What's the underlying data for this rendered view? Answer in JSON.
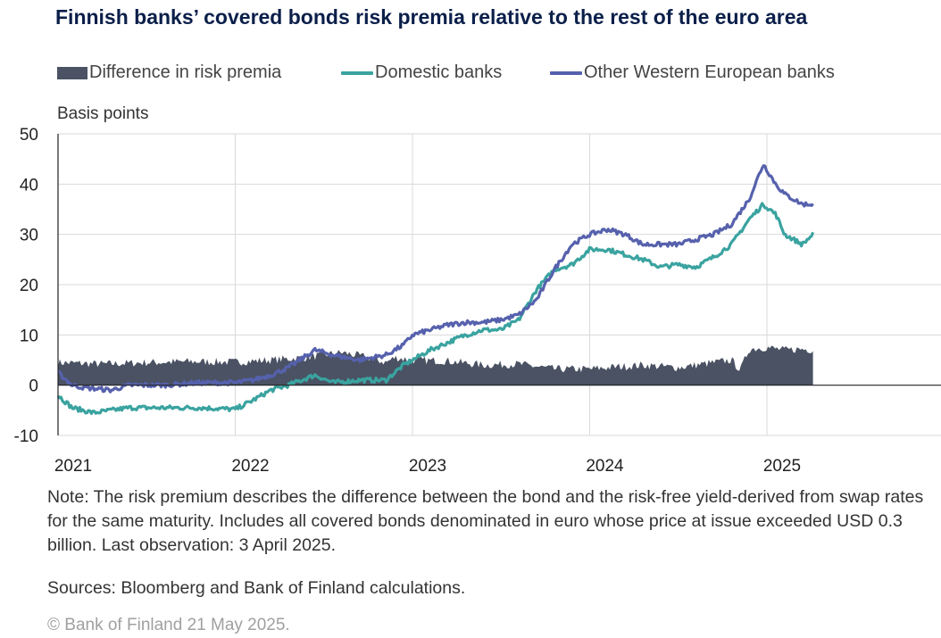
{
  "title": "Finnish banks’ covered bonds risk premia relative to the rest of the euro area",
  "ylabel_text": "Basis points",
  "note": "Note: The risk premium describes the difference between the bond and the risk-free yield-derived from swap rates for the same maturity. Includes all covered bonds denominated in euro whose price at issue exceeded USD 0.3 billion. Last observation: 3 April 2025.",
  "sources": "Sources: Bloomberg and Bank of Finland calculations.",
  "copyright": "© Bank of Finland 21 May 2025.",
  "colors": {
    "difference": "#4a5263",
    "domestic": "#3aa3a0",
    "other": "#5661ad",
    "axis": "#222222",
    "grid": "#d9d9d9"
  },
  "chart_data": {
    "type": "line",
    "title": "Finnish banks’ covered bonds risk premia relative to the rest of the euro area",
    "xlabel": "",
    "ylabel": "Basis points",
    "x_ticks": [
      "2021",
      "2022",
      "2023",
      "2024",
      "2025"
    ],
    "ylim": [
      -10,
      50
    ],
    "y_ticks": [
      -10,
      0,
      10,
      20,
      30,
      40,
      50
    ],
    "grid": true,
    "legend_position": "top",
    "series": [
      {
        "name": "Difference in risk premia",
        "kind": "bar",
        "color": "#4a5263",
        "x": [
          2021.0,
          2021.25,
          2021.5,
          2021.75,
          2022.0,
          2022.2,
          2022.4,
          2022.6,
          2022.75,
          2022.85,
          2022.9,
          2023.0,
          2023.2,
          2023.4,
          2023.6,
          2023.8,
          2024.0,
          2024.1,
          2024.3,
          2024.5,
          2024.7,
          2024.8,
          2024.85,
          2024.9,
          2025.0,
          2025.1,
          2025.2,
          2025.26
        ],
        "values": [
          4.5,
          4.2,
          4.5,
          4.7,
          4.6,
          5.0,
          5.5,
          6.5,
          5.5,
          4.5,
          5.5,
          5.0,
          4.8,
          4.0,
          4.2,
          3.2,
          3.2,
          3.5,
          4.0,
          3.5,
          4.5,
          5.0,
          3.0,
          7.2,
          7.5,
          7.0,
          7.2,
          7.0
        ]
      },
      {
        "name": "Domestic banks",
        "kind": "line",
        "color": "#3aa3a0",
        "x": [
          2021.0,
          2021.08,
          2021.2,
          2021.3,
          2021.4,
          2021.6,
          2021.8,
          2022.0,
          2022.1,
          2022.2,
          2022.3,
          2022.45,
          2022.55,
          2022.7,
          2022.85,
          2022.95,
          2023.0,
          2023.1,
          2023.2,
          2023.3,
          2023.4,
          2023.5,
          2023.6,
          2023.7,
          2023.8,
          2023.9,
          2024.0,
          2024.1,
          2024.2,
          2024.3,
          2024.4,
          2024.5,
          2024.6,
          2024.7,
          2024.8,
          2024.9,
          2024.98,
          2025.05,
          2025.1,
          2025.2,
          2025.26
        ],
        "values": [
          -2,
          -4.5,
          -5.5,
          -5,
          -4.5,
          -4.5,
          -4.5,
          -4.8,
          -3,
          -1,
          0,
          2,
          0.5,
          1,
          1,
          4,
          5,
          7,
          8.5,
          10,
          11,
          11,
          13,
          19,
          23,
          24,
          27,
          27,
          26,
          25,
          23.5,
          24,
          23.5,
          25.5,
          28,
          33,
          36,
          34,
          30,
          28,
          30
        ]
      },
      {
        "name": "Other Western European banks",
        "kind": "line",
        "color": "#5661ad",
        "x": [
          2021.0,
          2021.08,
          2021.15,
          2021.3,
          2021.4,
          2021.6,
          2021.8,
          2022.0,
          2022.1,
          2022.2,
          2022.3,
          2022.45,
          2022.55,
          2022.7,
          2022.85,
          2022.95,
          2023.0,
          2023.1,
          2023.2,
          2023.3,
          2023.4,
          2023.5,
          2023.6,
          2023.7,
          2023.8,
          2023.9,
          2024.0,
          2024.1,
          2024.2,
          2024.3,
          2024.4,
          2024.5,
          2024.6,
          2024.7,
          2024.8,
          2024.9,
          2024.98,
          2025.05,
          2025.1,
          2025.2,
          2025.26
        ],
        "values": [
          2.5,
          0,
          -0.5,
          -1,
          0,
          0,
          0.5,
          0.5,
          1,
          2,
          3.5,
          7,
          6,
          5,
          6,
          8,
          10,
          11,
          12,
          12.5,
          12.5,
          13,
          14,
          17,
          23,
          28,
          30,
          31,
          30,
          28,
          28,
          28,
          29,
          30,
          32,
          37,
          44,
          40,
          38,
          36,
          36
        ]
      }
    ]
  }
}
